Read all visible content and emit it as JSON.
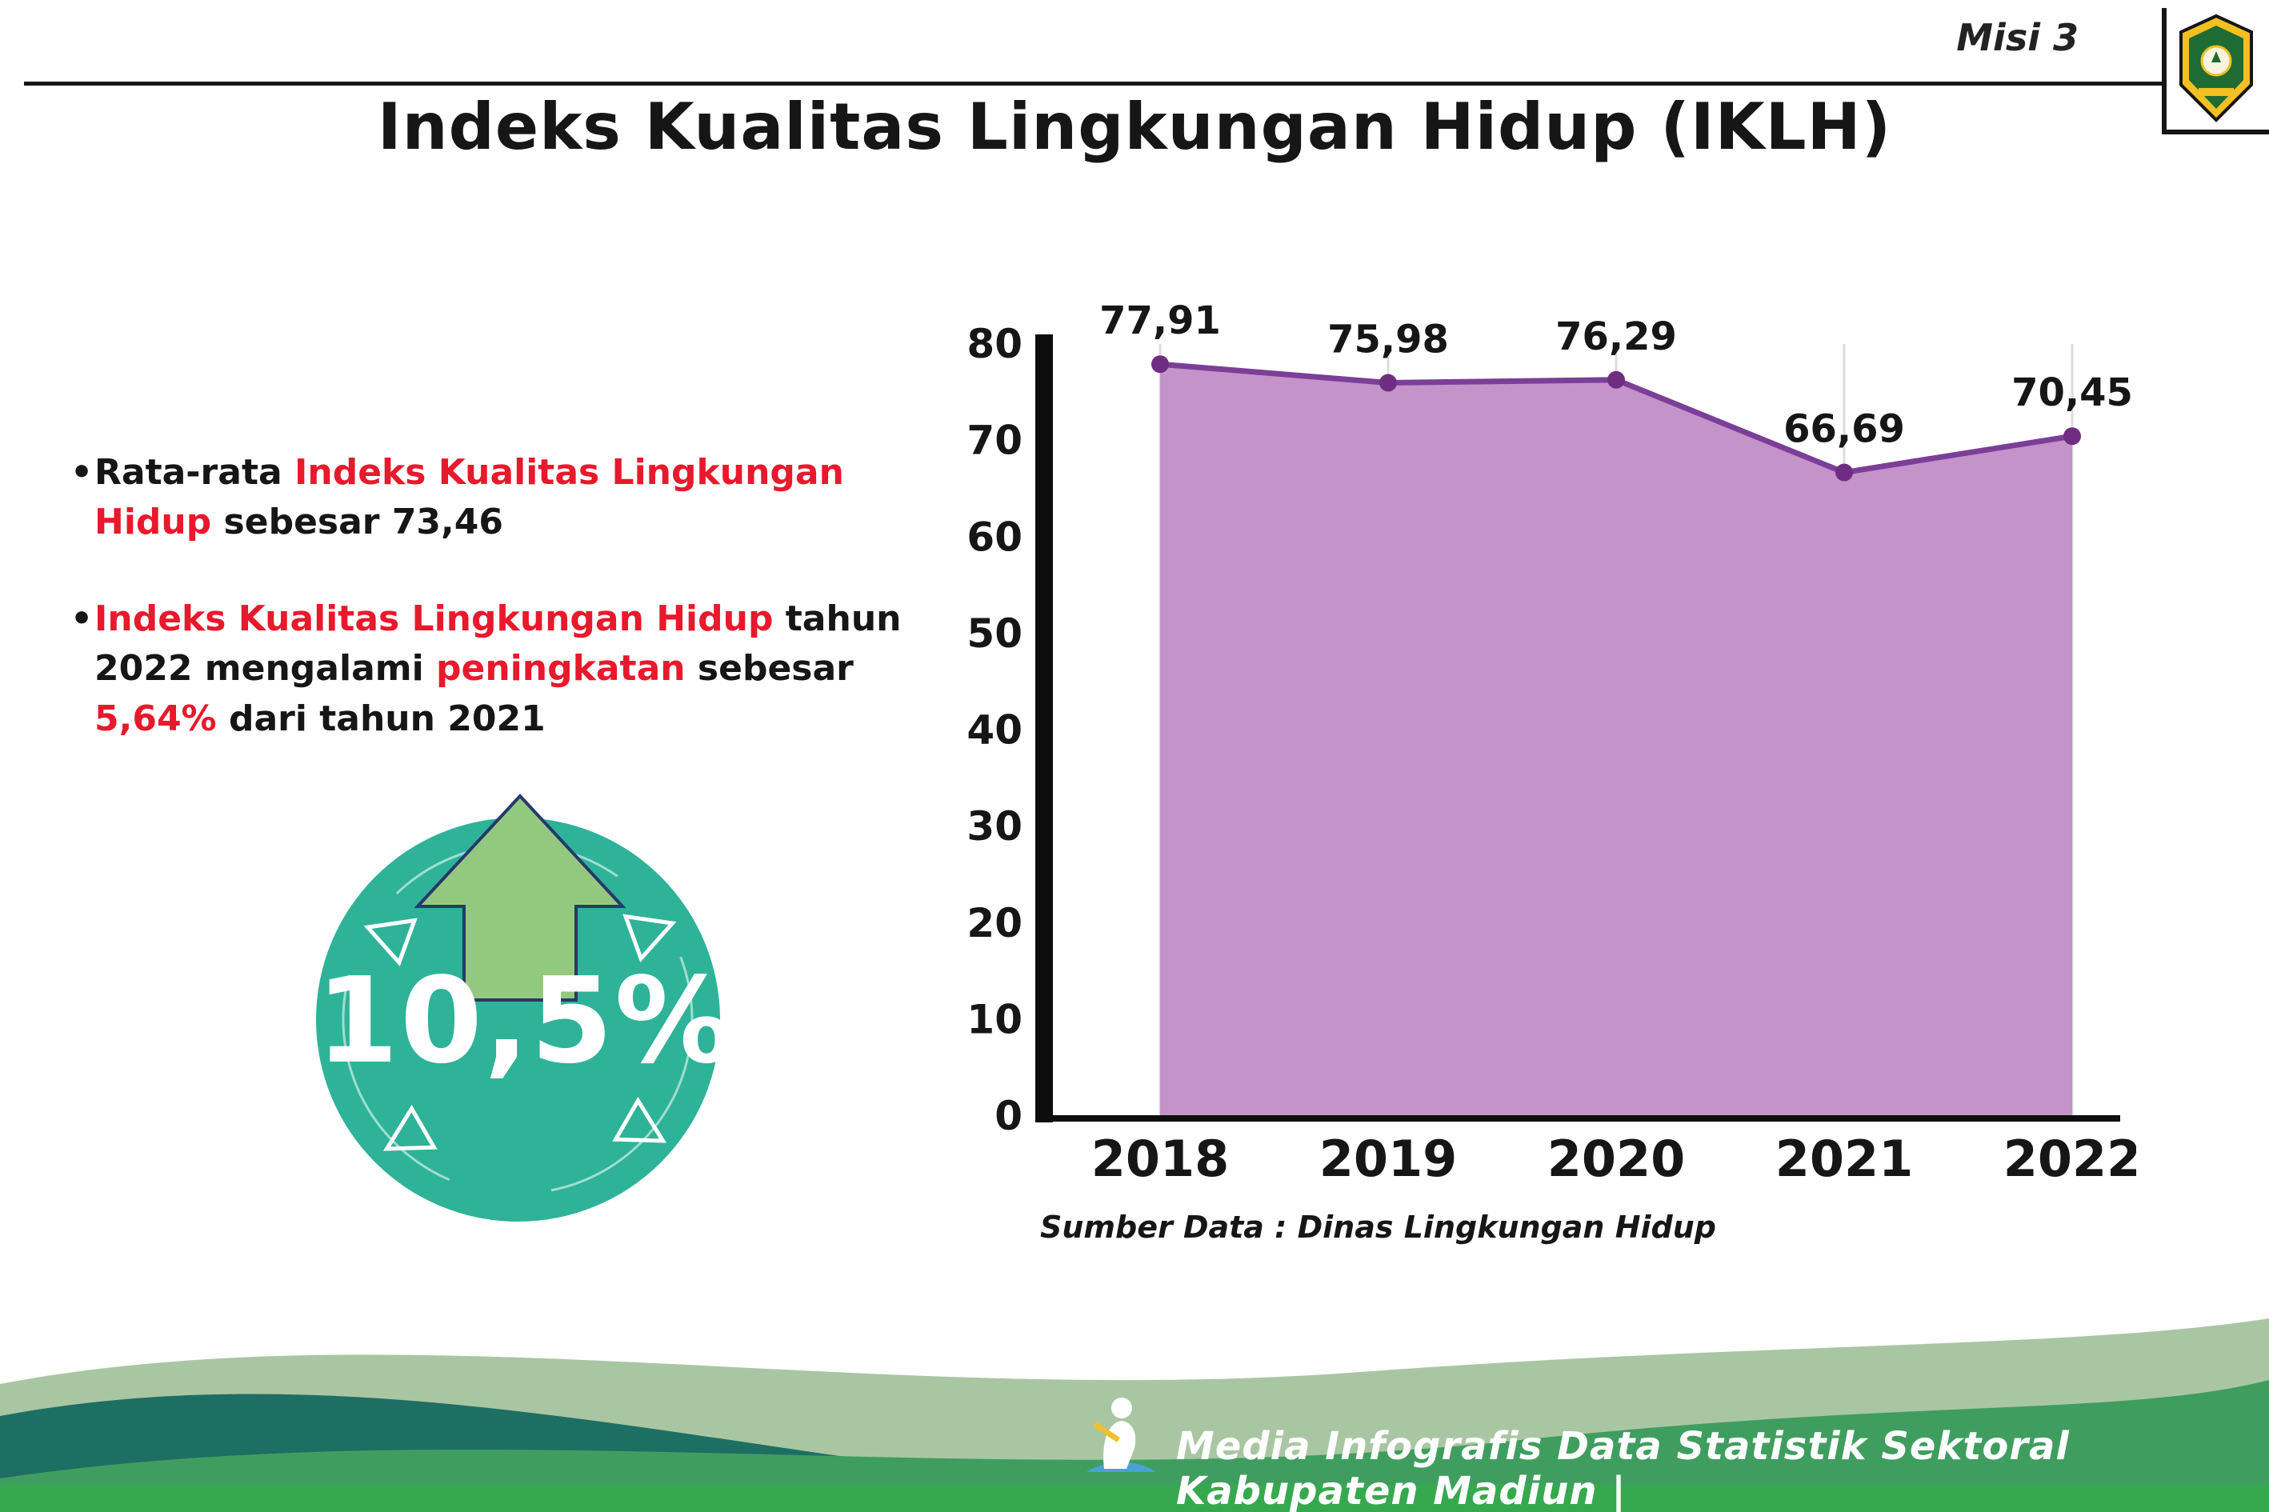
{
  "header": {
    "misi_label": "Misi 3"
  },
  "title": "Indeks Kualitas Lingkungan Hidup (IKLH)",
  "bullets": [
    {
      "segments": [
        {
          "t": "Rata-rata ",
          "c": "black"
        },
        {
          "t": "Indeks Kualitas Lingkungan Hidup",
          "c": "red"
        },
        {
          "t": " sebesar 73,46",
          "c": "black"
        }
      ]
    },
    {
      "segments": [
        {
          "t": "Indeks Kualitas Lingkungan Hidup",
          "c": "red"
        },
        {
          "t": " tahun 2022 mengalami ",
          "c": "black"
        },
        {
          "t": "peningkatan",
          "c": "red"
        },
        {
          "t": " sebesar ",
          "c": "black"
        },
        {
          "t": "5,64%",
          "c": "red"
        },
        {
          "t": " dari tahun 2021",
          "c": "black"
        }
      ]
    }
  ],
  "badge": {
    "value": "10,5%"
  },
  "chart_data": {
    "type": "area",
    "title": "Indeks Kualitas Lingkungan Hidup (IKLH)",
    "categories": [
      "2018",
      "2019",
      "2020",
      "2021",
      "2022"
    ],
    "values": [
      77.91,
      75.98,
      76.29,
      66.69,
      70.45
    ],
    "point_labels": [
      "77,91",
      "75,98",
      "76,29",
      "66,69",
      "70,45"
    ],
    "ylim": [
      0,
      80
    ],
    "ytick_step": 10,
    "grid": "vertical",
    "legend": "none",
    "line_color": "#7b3f98",
    "fill_color": "#c493c9",
    "point_color": "#6f2d82",
    "source_note": "Sumber Data : Dinas Lingkungan Hidup"
  },
  "footer": {
    "text": "Media Infografis Data Statistik Sektoral Kabupaten Madiun |"
  },
  "colors": {
    "accent_red": "#e8192c",
    "badge_teal": "#2eb398",
    "arrow_green": "#93c97e",
    "arrow_outline": "#27386b",
    "footer_light": "#a9c6a3",
    "footer_dark_teal": "#1e6f63",
    "footer_green": "#3f9e5f",
    "footer_strip": "#36a94e"
  }
}
